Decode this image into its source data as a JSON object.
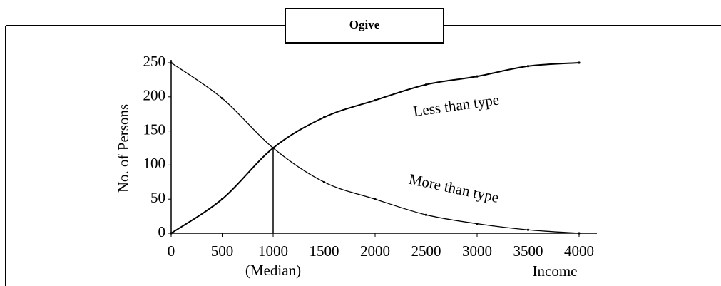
{
  "chart_data": {
    "type": "line",
    "title": "Ogive",
    "x": [
      0,
      500,
      1000,
      1500,
      2000,
      2500,
      3000,
      3500,
      4000
    ],
    "series": [
      {
        "name": "Less than type",
        "color": "#000000",
        "values": [
          0,
          50,
          125,
          170,
          195,
          218,
          230,
          245,
          250
        ]
      },
      {
        "name": "More than type",
        "color": "#000000",
        "values": [
          250,
          198,
          125,
          75,
          50,
          27,
          14,
          5,
          0
        ]
      }
    ],
    "xlim": [
      0,
      4000
    ],
    "ylim": [
      0,
      250
    ],
    "xticks": [
      0,
      500,
      1000,
      1500,
      2000,
      2500,
      3000,
      3500,
      4000
    ],
    "yticks": [
      0,
      50,
      100,
      150,
      200,
      250
    ],
    "x_label": "Income",
    "y_label": "No. of Persons",
    "median": {
      "label": "(Median)",
      "x": 1000,
      "y": 125
    }
  }
}
